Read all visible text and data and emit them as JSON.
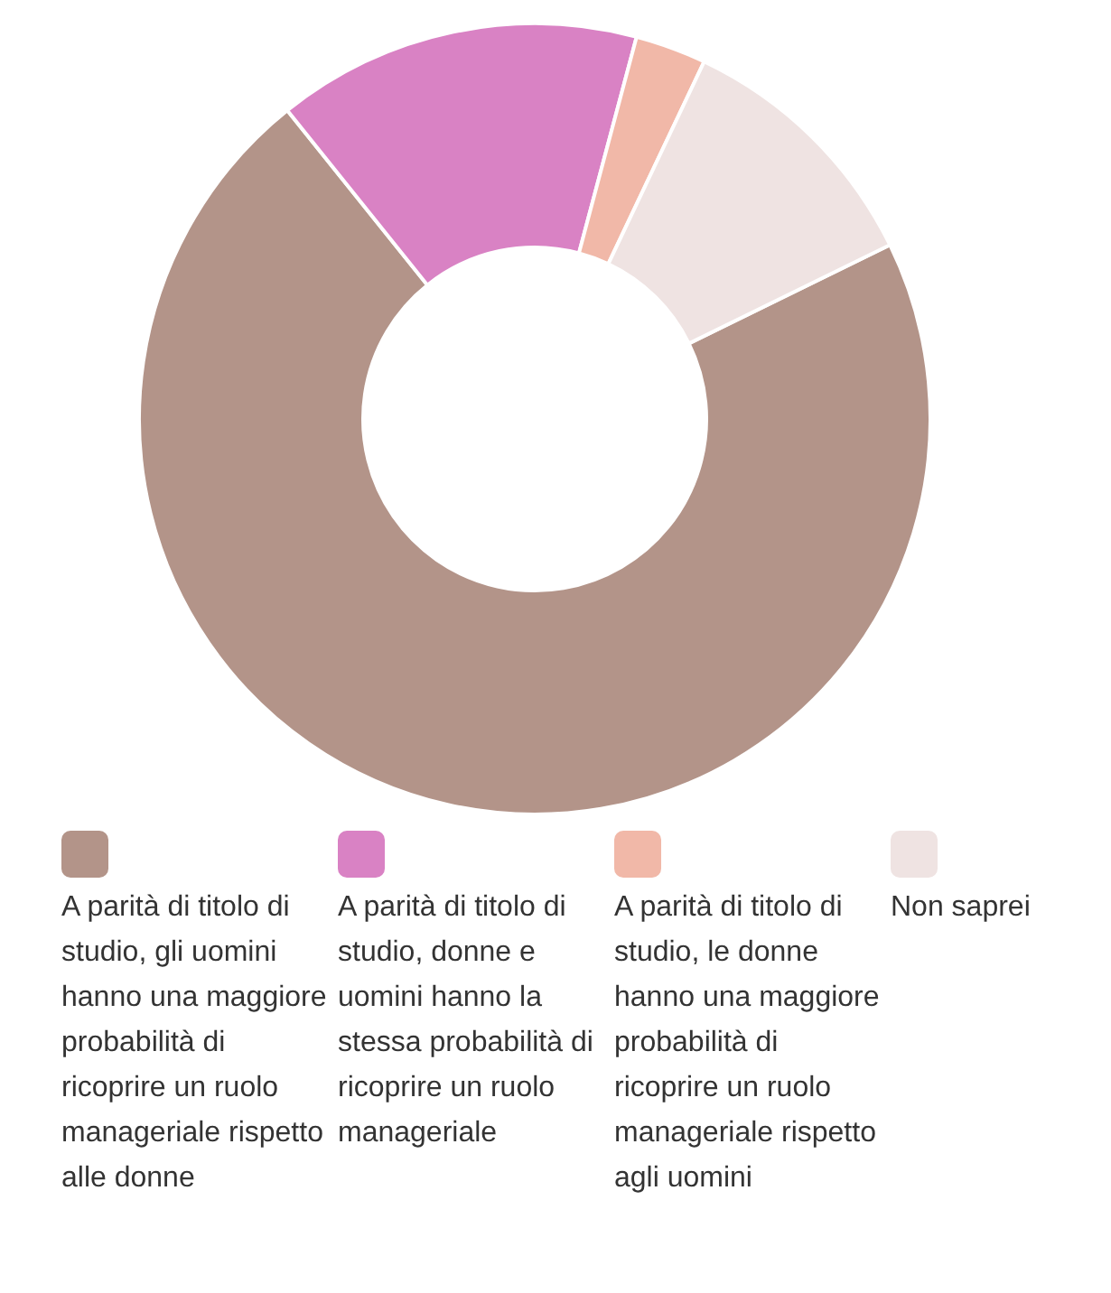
{
  "chart_data": {
    "type": "donut",
    "categories": [
      "A parità di titolo di studio, gli uomini hanno una maggiore probabilità di ricoprire un ruolo manageriale rispetto alle donne",
      "A parità di titolo di studio, donne e uomini hanno la stessa probabilità di ricoprire un ruolo manageriale",
      "A parità di titolo di studio, le donne hanno una maggiore probabilità di ricoprire un ruolo manageriale rispetto agli uomini",
      "Non saprei"
    ],
    "values": [
      71.5,
      14.9,
      2.9,
      10.7
    ],
    "colors": [
      "#b39489",
      "#d982c4",
      "#f1b8a8",
      "#efe3e2"
    ],
    "legend": "bottom"
  }
}
